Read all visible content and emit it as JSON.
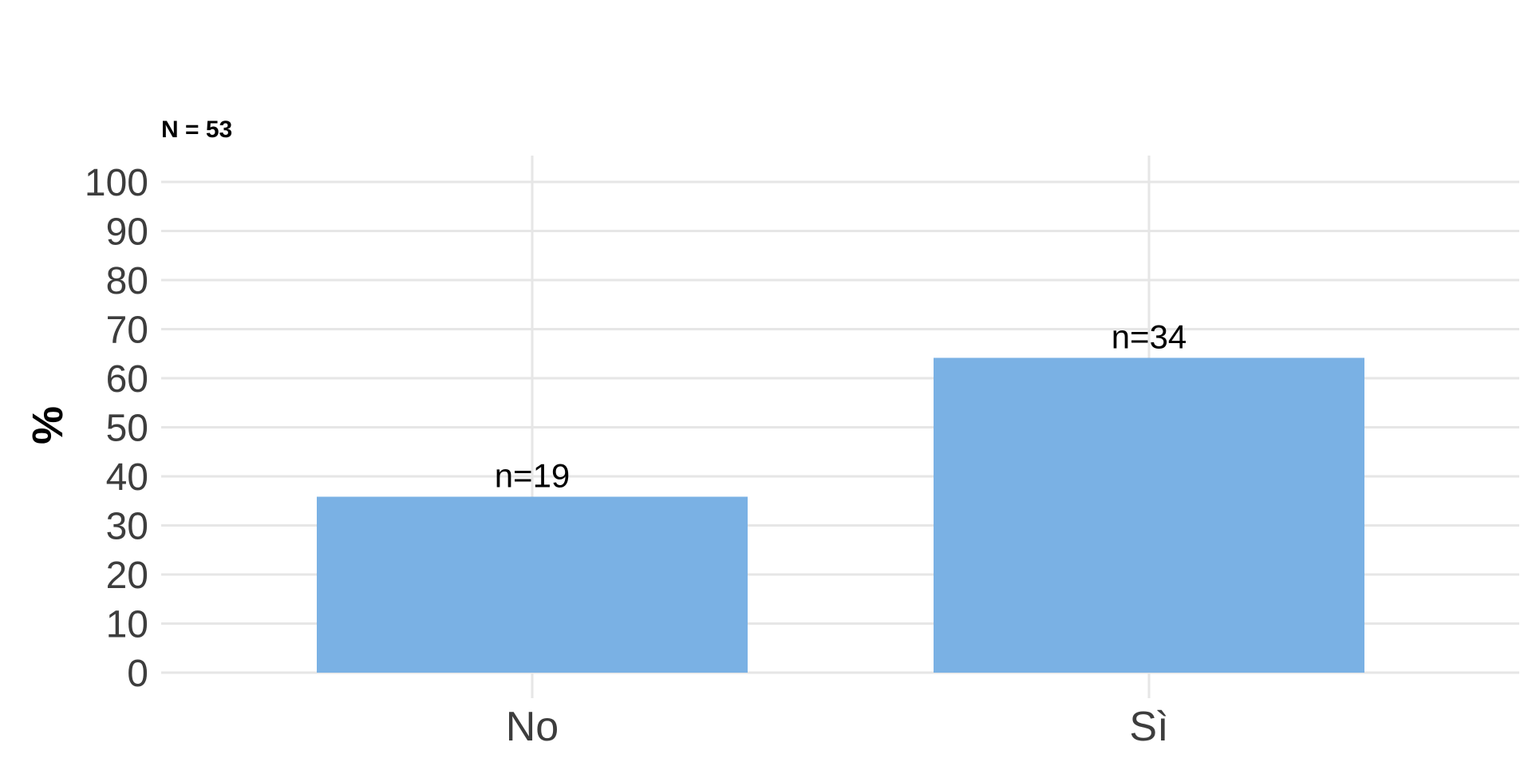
{
  "chart_data": {
    "type": "bar",
    "subtitle": "N = 53",
    "ylabel": "%",
    "xlabel": "",
    "categories": [
      "No",
      "Sì"
    ],
    "values": [
      35.85,
      64.15
    ],
    "data_labels": [
      "n=19",
      "n=34"
    ],
    "ylim": [
      0,
      100
    ],
    "yticks": [
      0,
      10,
      20,
      30,
      40,
      50,
      60,
      70,
      80,
      90,
      100
    ],
    "grid": true,
    "legend": "none",
    "bar_color": "#7ab1e4",
    "grid_color": "#e6e6e6"
  }
}
